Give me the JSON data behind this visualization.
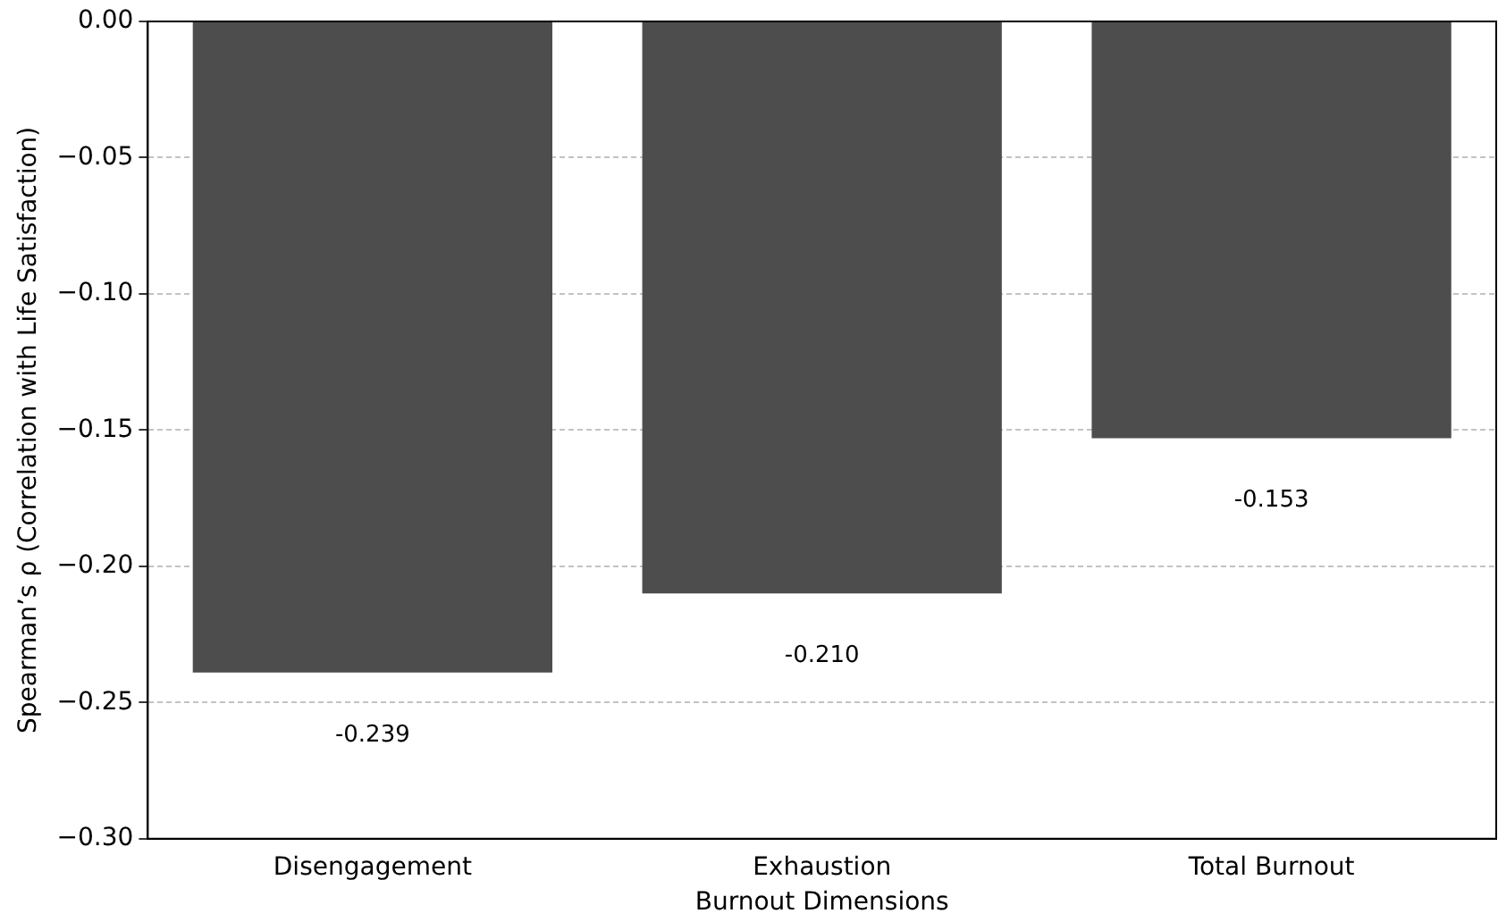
{
  "chart_data": {
    "type": "bar",
    "xlabel": "Burnout Dimensions",
    "ylabel": "Spearman’s ρ (Correlation with Life Satisfaction)",
    "categories": [
      "Disengagement",
      "Exhaustion",
      "Total Burnout"
    ],
    "values": [
      -0.239,
      -0.21,
      -0.153
    ],
    "value_labels": [
      "-0.239",
      "-0.210",
      "-0.153"
    ],
    "color": "#4d4d4d",
    "ylim": [
      -0.3,
      0
    ],
    "yticks": [
      {
        "value": -0.3,
        "label": "−0.30"
      },
      {
        "value": -0.25,
        "label": "−0.25"
      },
      {
        "value": -0.2,
        "label": "−0.20"
      },
      {
        "value": -0.15,
        "label": "−0.15"
      },
      {
        "value": -0.1,
        "label": "−0.10"
      },
      {
        "value": -0.05,
        "label": "−0.05"
      },
      {
        "value": 0,
        "label": "0.00"
      }
    ],
    "grid": "y",
    "legend": false
  }
}
